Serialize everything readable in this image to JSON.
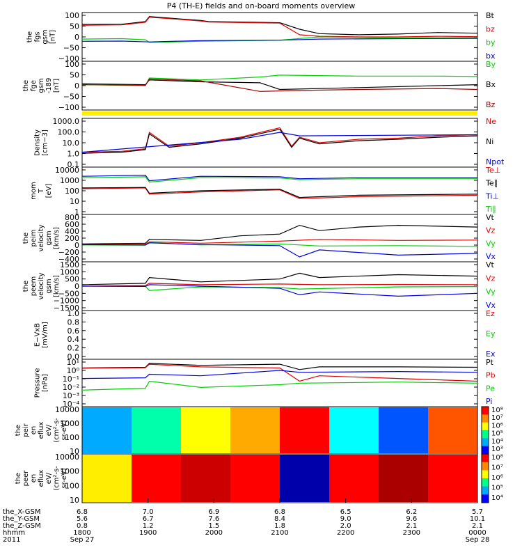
{
  "title": "P4 (TH-E) fields and on-board moments overview",
  "chart_data": [
    {
      "type": "line",
      "ylabel": [
        "the",
        "fgs",
        "gsm",
        "[nT]"
      ],
      "yticks": [
        "100",
        "50",
        "0",
        "−50",
        "−100"
      ],
      "ylim": [
        -100,
        110
      ],
      "series": [
        {
          "name": "Bt",
          "color": "#000000",
          "x": [
            0,
            0.1,
            0.16,
            0.17,
            0.3,
            0.32,
            0.5,
            0.55,
            0.6,
            0.7,
            0.8,
            0.9,
            1
          ],
          "y": [
            62,
            63,
            75,
            98,
            80,
            75,
            70,
            40,
            20,
            15,
            18,
            25,
            22
          ]
        },
        {
          "name": "bz",
          "color": "#e00000",
          "x": [
            0,
            0.1,
            0.16,
            0.17,
            0.3,
            0.32,
            0.5,
            0.55,
            0.6,
            0.7,
            0.8,
            0.9,
            1
          ],
          "y": [
            58,
            60,
            72,
            95,
            78,
            73,
            68,
            15,
            8,
            5,
            5,
            8,
            6
          ]
        },
        {
          "name": "by",
          "color": "#00d000",
          "x": [
            0,
            0.1,
            0.16,
            0.17,
            0.3,
            0.5,
            0.6,
            0.8,
            1
          ],
          "y": [
            -5,
            -3,
            -8,
            -20,
            -15,
            -10,
            5,
            0,
            2
          ]
        },
        {
          "name": "bx",
          "color": "#0000e0",
          "x": [
            0,
            0.1,
            0.17,
            0.3,
            0.5,
            0.6,
            0.8,
            1
          ],
          "y": [
            -15,
            -14,
            -18,
            -12,
            -10,
            -5,
            -3,
            -2
          ]
        }
      ]
    },
    {
      "type": "line",
      "ylabel": [
        "the",
        "fge",
        "gsm",
        "-189",
        "[nT]"
      ],
      "yticks": [
        "100",
        "50",
        "0",
        "−50",
        "−100"
      ],
      "ylim": [
        -130,
        110
      ],
      "series": [
        {
          "name": "By",
          "color": "#00d000",
          "x": [
            0,
            0.16,
            0.17,
            0.3,
            0.45,
            0.5,
            0.7,
            0.9,
            1
          ],
          "y": [
            -5,
            -10,
            30,
            20,
            35,
            45,
            40,
            40,
            38
          ]
        },
        {
          "name": "Bx",
          "color": "#000000",
          "x": [
            0,
            0.16,
            0.17,
            0.3,
            0.45,
            0.5,
            0.7,
            0.9,
            1
          ],
          "y": [
            0,
            -5,
            20,
            10,
            5,
            -30,
            -20,
            -10,
            -5
          ]
        },
        {
          "name": "Bz",
          "color": "#a00000",
          "x": [
            0,
            0.16,
            0.17,
            0.3,
            0.45,
            0.55,
            0.7,
            0.9,
            1
          ],
          "y": [
            -5,
            -8,
            25,
            15,
            -40,
            -35,
            -30,
            -25,
            -30
          ]
        }
      ]
    },
    {
      "type": "band",
      "color": "#ffee00"
    },
    {
      "type": "line",
      "ylabel": [
        "Density",
        "[cm−3]"
      ],
      "yticks": [
        "1000.0",
        "100.0",
        "10.0",
        "1.0",
        "0.1"
      ],
      "yscale": "log",
      "ylim": [
        0.1,
        1000
      ],
      "series": [
        {
          "name": "Ne",
          "color": "#e00000",
          "x": [
            0,
            0.1,
            0.16,
            0.17,
            0.22,
            0.3,
            0.4,
            0.5,
            0.53,
            0.55,
            0.6,
            0.7,
            0.8,
            0.9,
            1
          ],
          "y": [
            1.5,
            1.8,
            3,
            80,
            5,
            10,
            30,
            200,
            5,
            30,
            10,
            20,
            25,
            40,
            50
          ]
        },
        {
          "name": "Ni",
          "color": "#000000",
          "x": [
            0,
            0.1,
            0.16,
            0.17,
            0.22,
            0.3,
            0.4,
            0.5,
            0.53,
            0.55,
            0.6,
            0.7,
            0.8,
            0.9,
            1
          ],
          "y": [
            1.2,
            1.5,
            2.5,
            60,
            4,
            8,
            25,
            150,
            4,
            25,
            8,
            15,
            20,
            30,
            40
          ]
        },
        {
          "name": "Npot",
          "color": "#0000e0",
          "x": [
            0,
            0.4,
            0.5,
            0.55,
            1
          ],
          "y": [
            1.5,
            20,
            80,
            40,
            50
          ]
        }
      ]
    },
    {
      "type": "line",
      "ylabel": [
        "mom",
        "T",
        "[eV]"
      ],
      "yticks": [
        "10000",
        "1000",
        "100",
        "10",
        "1"
      ],
      "yscale": "log",
      "ylim": [
        1,
        10000
      ],
      "series": [
        {
          "name": "Te⊥",
          "color": "#e00000",
          "x": [
            0,
            0.16,
            0.17,
            0.3,
            0.5,
            0.55,
            0.7,
            1
          ],
          "y": [
            150,
            180,
            50,
            80,
            120,
            20,
            30,
            40
          ]
        },
        {
          "name": "Te∥",
          "color": "#000000",
          "x": [
            0,
            0.16,
            0.17,
            0.3,
            0.5,
            0.55,
            0.7,
            1
          ],
          "y": [
            180,
            200,
            60,
            100,
            140,
            25,
            40,
            50
          ]
        },
        {
          "name": "Ti⊥",
          "color": "#0000e0",
          "x": [
            0,
            0.16,
            0.17,
            0.3,
            0.5,
            0.55,
            0.7,
            1
          ],
          "y": [
            2000,
            2500,
            800,
            2000,
            1800,
            1200,
            1500,
            1500
          ]
        },
        {
          "name": "Ti∥",
          "color": "#00d000",
          "x": [
            0,
            0.16,
            0.17,
            0.3,
            0.5,
            0.55,
            0.7,
            1
          ],
          "y": [
            1500,
            1800,
            600,
            1500,
            1400,
            1000,
            1200,
            1200
          ]
        }
      ]
    },
    {
      "type": "line",
      "ylabel": [
        "the",
        "peim",
        "velocity",
        "gsm",
        "[km/s]"
      ],
      "yticks": [
        "800",
        "600",
        "400",
        "200",
        "0",
        "−200",
        "−400"
      ],
      "ylim": [
        -450,
        820
      ],
      "series": [
        {
          "name": "Vt",
          "color": "#000000",
          "x": [
            0,
            0.16,
            0.17,
            0.3,
            0.4,
            0.5,
            0.55,
            0.6,
            0.7,
            0.8,
            1
          ],
          "y": [
            20,
            40,
            150,
            120,
            250,
            300,
            550,
            400,
            500,
            550,
            500
          ]
        },
        {
          "name": "Vz",
          "color": "#e00000",
          "x": [
            0,
            0.16,
            0.17,
            0.3,
            0.5,
            0.6,
            0.8,
            1
          ],
          "y": [
            0,
            10,
            80,
            40,
            100,
            150,
            120,
            130
          ]
        },
        {
          "name": "Vy",
          "color": "#00d000",
          "x": [
            0,
            0.16,
            0.17,
            0.3,
            0.5,
            0.6,
            0.8,
            1
          ],
          "y": [
            -10,
            -20,
            60,
            -10,
            20,
            -40,
            -30,
            -50
          ]
        },
        {
          "name": "Vx",
          "color": "#0000e0",
          "x": [
            0,
            0.16,
            0.17,
            0.3,
            0.5,
            0.55,
            0.6,
            0.8,
            1
          ],
          "y": [
            0,
            -10,
            50,
            0,
            -30,
            -350,
            -150,
            -300,
            -250
          ]
        }
      ]
    },
    {
      "type": "line",
      "ylabel": [
        "the",
        "peem",
        "velocity",
        "gsm",
        "[km/s]"
      ],
      "yticks": [
        "1500",
        "1000",
        "500",
        "0",
        "−500",
        "−1000",
        "−1500"
      ],
      "ylim": [
        -1600,
        1600
      ],
      "series": [
        {
          "name": "Vt",
          "color": "#000000",
          "x": [
            0,
            0.16,
            0.17,
            0.3,
            0.5,
            0.55,
            0.6,
            0.8,
            1
          ],
          "y": [
            100,
            200,
            600,
            300,
            500,
            900,
            600,
            800,
            700
          ]
        },
        {
          "name": "Vz",
          "color": "#e00000",
          "x": [
            0,
            0.16,
            0.17,
            0.3,
            0.5,
            0.6,
            0.8,
            1
          ],
          "y": [
            0,
            50,
            200,
            100,
            150,
            100,
            120,
            100
          ]
        },
        {
          "name": "Vy",
          "color": "#00d000",
          "x": [
            0,
            0.16,
            0.17,
            0.3,
            0.5,
            0.55,
            0.8,
            1
          ],
          "y": [
            0,
            -20,
            -300,
            -50,
            -100,
            -200,
            -50,
            -30
          ]
        },
        {
          "name": "Vx",
          "color": "#0000e0",
          "x": [
            0,
            0.16,
            0.17,
            0.3,
            0.5,
            0.55,
            0.6,
            0.8,
            1
          ],
          "y": [
            0,
            -20,
            100,
            0,
            -150,
            -600,
            -400,
            -700,
            -500
          ]
        }
      ]
    },
    {
      "type": "line",
      "ylabel": [
        "E−VxB",
        "[mV/m]"
      ],
      "yticks": [
        "1.0",
        "0.8",
        "0.6",
        "0.4",
        "0.2",
        "0.0"
      ],
      "ylim": [
        0,
        1
      ],
      "series": [
        {
          "name": "Ez",
          "color": "#e00000",
          "x": [],
          "y": []
        },
        {
          "name": "Ey",
          "color": "#00d000",
          "x": [],
          "y": []
        },
        {
          "name": "Ex",
          "color": "#0000e0",
          "x": [],
          "y": []
        }
      ]
    },
    {
      "type": "line",
      "ylabel": [
        "Pressure",
        "[nPa]"
      ],
      "yticks": [
        "10¹",
        "10⁰",
        "10⁻¹",
        "10⁻²",
        "10⁻³",
        "10⁻⁴"
      ],
      "yscale": "log",
      "ylim": [
        0.0001,
        10
      ],
      "series": [
        {
          "name": "Pt",
          "color": "#000000",
          "x": [
            0,
            0.16,
            0.17,
            0.3,
            0.5,
            0.55,
            0.6,
            0.8,
            1
          ],
          "y": [
            1.5,
            1.8,
            5,
            3,
            4,
            1,
            2,
            2,
            1.8
          ]
        },
        {
          "name": "Pb",
          "color": "#e00000",
          "x": [
            0,
            0.16,
            0.17,
            0.3,
            0.5,
            0.55,
            0.6,
            0.8,
            1
          ],
          "y": [
            1.4,
            1.6,
            4,
            2,
            1.5,
            0.05,
            0.2,
            0.1,
            0.05
          ]
        },
        {
          "name": "Pe",
          "color": "#00d000",
          "x": [
            0,
            0.16,
            0.17,
            0.3,
            0.5,
            0.55,
            0.8,
            1
          ],
          "y": [
            0.005,
            0.008,
            0.05,
            0.01,
            0.02,
            0.03,
            0.04,
            0.03
          ]
        },
        {
          "name": "Pi",
          "color": "#0000e0",
          "x": [
            0,
            0.16,
            0.17,
            0.3,
            0.5,
            0.55,
            0.8,
            1
          ],
          "y": [
            0.1,
            0.12,
            0.3,
            0.2,
            0.8,
            0.5,
            0.6,
            0.5
          ]
        }
      ]
    },
    {
      "type": "heatmap",
      "ylabel": [
        "the",
        "peir",
        "en",
        "eflux",
        "eV/",
        "(cm²-s-",
        "sr-eV)"
      ],
      "yticks": [
        "10000",
        "1000",
        "100",
        "10"
      ],
      "colorbar_ticks": [
        "10⁸",
        "10⁷",
        "10⁶",
        "10⁵",
        "10⁴",
        "10³"
      ],
      "columns": [
        "#00aaff",
        "#00ffaa",
        "#ffff00",
        "#ffaa00",
        "#ff0000",
        "#00ffff",
        "#0055ff",
        "#ff5500"
      ]
    },
    {
      "type": "heatmap",
      "ylabel": [
        "the",
        "peer",
        "en",
        "eflux",
        "eV/",
        "(cm²-s-",
        "sr-eV)"
      ],
      "yticks": [
        "10000",
        "1000",
        "100",
        "10"
      ],
      "colorbar_ticks": [
        "10⁸",
        "10⁷",
        "10⁶",
        "10⁵",
        "10⁴"
      ],
      "columns": [
        "#ffee00",
        "#ff0000",
        "#cc0000",
        "#ff0000",
        "#0000aa",
        "#ff0000",
        "#aa0000",
        "#ff0000"
      ]
    }
  ],
  "footer": {
    "labels": [
      "the_X-GSM",
      "the_Y-GSM",
      "the_Z-GSM",
      "hhmm",
      "2011"
    ],
    "rows": [
      [
        "6.8",
        "7.0",
        "6.9",
        "6.8",
        "6.5",
        "6.2",
        "5.7"
      ],
      [
        "5.6",
        "6.7",
        "7.6",
        "8.4",
        "9.0",
        "9.6",
        "10.1"
      ],
      [
        "0.8",
        "1.2",
        "1.5",
        "1.8",
        "2.0",
        "2.1",
        "2.1"
      ],
      [
        "1800",
        "1900",
        "2000",
        "2100",
        "2200",
        "2300",
        "0000"
      ],
      [
        "Sep 27",
        "",
        "",
        "",
        "",
        "",
        "Sep 28"
      ]
    ]
  }
}
